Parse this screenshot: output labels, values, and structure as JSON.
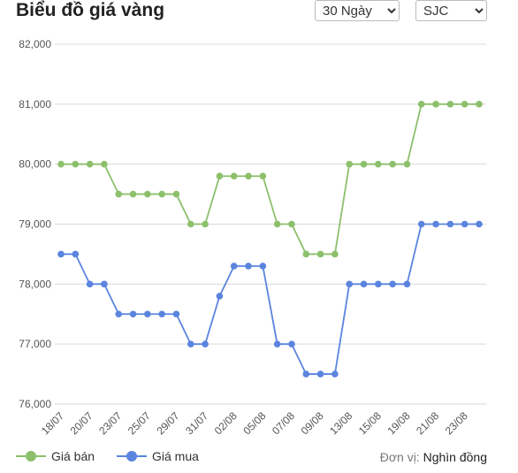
{
  "header": {
    "title": "Biểu đồ giá vàng",
    "period": "30 Ngày",
    "brand": "SJC"
  },
  "footer": {
    "unit_label": "Đơn vị:",
    "unit_value": "Nghìn đồng"
  },
  "chart_data": {
    "type": "line",
    "categories": [
      "18/07",
      null,
      "20/07",
      null,
      "23/07",
      null,
      "25/07",
      null,
      "29/07",
      null,
      "31/07",
      null,
      "02/08",
      null,
      "05/08",
      null,
      "07/08",
      null,
      "09/08",
      null,
      "13/08",
      null,
      "15/08",
      null,
      "19/08",
      null,
      "21/08",
      null,
      "23/08",
      null
    ],
    "series": [
      {
        "name": "Giá bán",
        "color": "#8cc06b",
        "values": [
          80000,
          80000,
          80000,
          80000,
          79500,
          79500,
          79500,
          79500,
          79500,
          79000,
          79000,
          79800,
          79800,
          79800,
          79800,
          79000,
          79000,
          78500,
          78500,
          78500,
          80000,
          80000,
          80000,
          80000,
          80000,
          81000,
          81000,
          81000,
          81000,
          81000
        ]
      },
      {
        "name": "Giá mua",
        "color": "#5b84df",
        "values": [
          78500,
          78500,
          78000,
          78000,
          77500,
          77500,
          77500,
          77500,
          77500,
          77000,
          77000,
          77800,
          78300,
          78300,
          78300,
          77000,
          77000,
          76500,
          76500,
          76500,
          78000,
          78000,
          78000,
          78000,
          78000,
          79000,
          79000,
          79000,
          79000,
          79000
        ]
      }
    ],
    "ylim": [
      76000,
      82000
    ],
    "yticks": [
      {
        "value": 76000,
        "label": "76,000"
      },
      {
        "value": 77000,
        "label": "77,000"
      },
      {
        "value": 78000,
        "label": "78,000"
      },
      {
        "value": 79000,
        "label": "79,000"
      },
      {
        "value": 80000,
        "label": "80,000"
      },
      {
        "value": 81000,
        "label": "81,000"
      },
      {
        "value": 82000,
        "label": "82,000"
      }
    ],
    "grid": true,
    "legend": "bottom"
  }
}
